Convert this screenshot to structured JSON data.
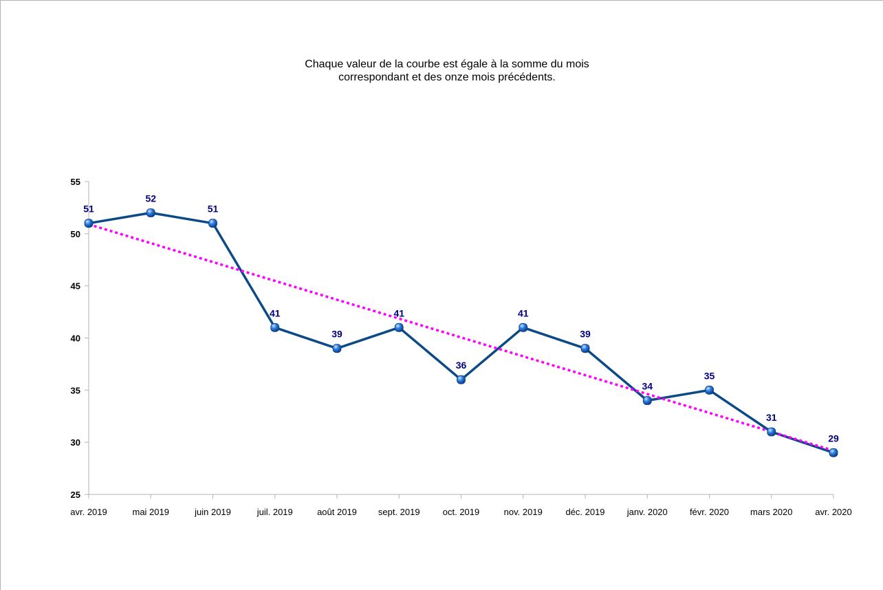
{
  "chart_data": {
    "type": "line",
    "title": "Chaque valeur de la courbe est égale à la somme du mois\ncorrespondant et des onze mois précédents.",
    "xlabel": "",
    "ylabel": "",
    "categories": [
      "avr. 2019",
      "mai 2019",
      "juin 2019",
      "juil. 2019",
      "août 2019",
      "sept. 2019",
      "oct. 2019",
      "nov. 2019",
      "déc. 2019",
      "janv. 2020",
      "févr. 2020",
      "mars 2020",
      "avr. 2020"
    ],
    "series": [
      {
        "values": [
          51,
          52,
          51,
          41,
          39,
          41,
          36,
          41,
          39,
          34,
          35,
          31,
          29
        ],
        "color": "#0b4a86",
        "marker_color": "#1e6fd6",
        "data_labels": true
      }
    ],
    "trendline": {
      "type": "linear",
      "color": "#ff00ff",
      "style": "dotted",
      "start": 50.9,
      "end": 29.2
    },
    "ylim": [
      25,
      55
    ],
    "yticks": [
      25,
      30,
      35,
      40,
      45,
      50,
      55
    ],
    "grid": false,
    "legend": "none",
    "label_color": "#000080"
  }
}
